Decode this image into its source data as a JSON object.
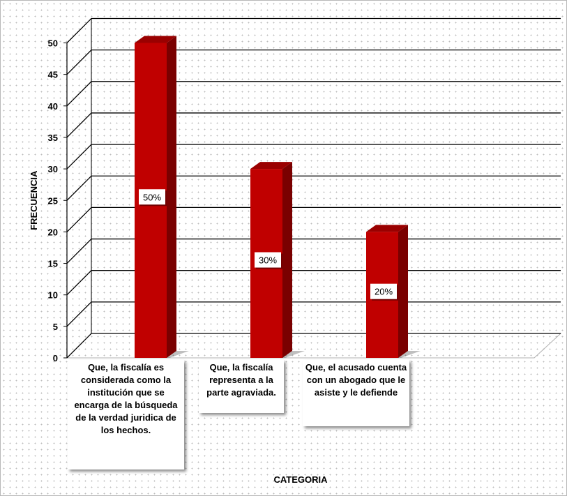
{
  "chart_data": {
    "type": "bar",
    "title": "",
    "xlabel": "CATEGORIA",
    "ylabel": "FRECUENCIA",
    "ylim": [
      0,
      50
    ],
    "yticks": [
      0,
      5,
      10,
      15,
      20,
      25,
      30,
      35,
      40,
      45,
      50
    ],
    "categories": [
      "Que, la fiscalía es considerada como la institución que se encarga de la búsqueda de la verdad juridica de los hechos.",
      "Que, la fiscalía representa a la parte agraviada.",
      "Que, el acusado cuenta con un abogado que le asiste y le defiende"
    ],
    "values": [
      50,
      30,
      20
    ],
    "data_labels": [
      "50%",
      "30%",
      "20%"
    ],
    "grid": true,
    "legend": "none",
    "bar_color": "#c00000"
  }
}
